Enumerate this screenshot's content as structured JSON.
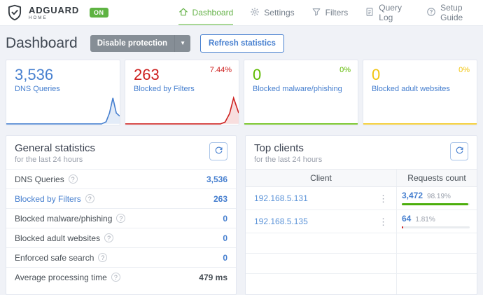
{
  "header": {
    "brand": {
      "name": "ADGUARD",
      "sub": "HOME",
      "badge": "ON"
    },
    "nav": [
      {
        "label": "Dashboard",
        "icon": "home-icon",
        "active": true
      },
      {
        "label": "Settings",
        "icon": "gear-icon",
        "active": false
      },
      {
        "label": "Filters",
        "icon": "funnel-icon",
        "active": false
      },
      {
        "label": "Query Log",
        "icon": "document-icon",
        "active": false
      },
      {
        "label": "Setup Guide",
        "icon": "help-circle-icon",
        "active": false
      }
    ]
  },
  "toolbar": {
    "title": "Dashboard",
    "disable_protection_label": "Disable protection",
    "refresh_statistics_label": "Refresh statistics"
  },
  "stat_cards": [
    {
      "value": "3,536",
      "label": "DNS Queries",
      "percent": "",
      "color": "#467fcf",
      "spark": [
        [
          0,
          0
        ],
        [
          0.84,
          0
        ],
        [
          0.88,
          0.08
        ],
        [
          0.91,
          0.42
        ],
        [
          0.94,
          1
        ],
        [
          0.97,
          0.42
        ],
        [
          1,
          0.3
        ]
      ]
    },
    {
      "value": "263",
      "label": "Blocked by Filters",
      "percent": "7.44%",
      "color": "#cd201f",
      "spark": [
        [
          0,
          0
        ],
        [
          0.84,
          0
        ],
        [
          0.88,
          0.07
        ],
        [
          0.92,
          0.4
        ],
        [
          0.955,
          1
        ],
        [
          1,
          0.42
        ]
      ]
    },
    {
      "value": "0",
      "label": "Blocked malware/phishing",
      "percent": "0%",
      "color": "#5eba00",
      "spark": [
        [
          0,
          0
        ],
        [
          1,
          0
        ]
      ]
    },
    {
      "value": "0",
      "label": "Blocked adult websites",
      "percent": "0%",
      "color": "#f1c40f",
      "spark": [
        [
          0,
          0
        ],
        [
          1,
          0
        ]
      ]
    }
  ],
  "general_statistics": {
    "title": "General statistics",
    "subtitle": "for the last 24 hours",
    "rows": [
      {
        "label": "DNS Queries",
        "value": "3,536",
        "link": false,
        "value_plain": false
      },
      {
        "label": "Blocked by Filters",
        "value": "263",
        "link": true,
        "value_plain": false
      },
      {
        "label": "Blocked malware/phishing",
        "value": "0",
        "link": false,
        "value_plain": false
      },
      {
        "label": "Blocked adult websites",
        "value": "0",
        "link": false,
        "value_plain": false
      },
      {
        "label": "Enforced safe search",
        "value": "0",
        "link": false,
        "value_plain": false
      },
      {
        "label": "Average processing time",
        "value": "479 ms",
        "link": false,
        "value_plain": true
      }
    ]
  },
  "top_clients": {
    "title": "Top clients",
    "subtitle": "for the last 24 hours",
    "columns": [
      "Client",
      "Requests count"
    ],
    "rows": [
      {
        "client": "192.168.5.131",
        "count": "3,472",
        "percent": "98.19%",
        "bar": 98.19,
        "bar_color": "#4cae0c"
      },
      {
        "client": "192.168.5.135",
        "count": "64",
        "percent": "1.81%",
        "bar": 1.81,
        "bar_color": "#cd201f"
      }
    ]
  },
  "colors": {
    "accent_green": "#67b34b",
    "badge_green": "#5eb342",
    "blue": "#467fcf",
    "red": "#cd201f",
    "green": "#5eba00",
    "yellow": "#f1c40f",
    "background": "#f0f2f7"
  }
}
